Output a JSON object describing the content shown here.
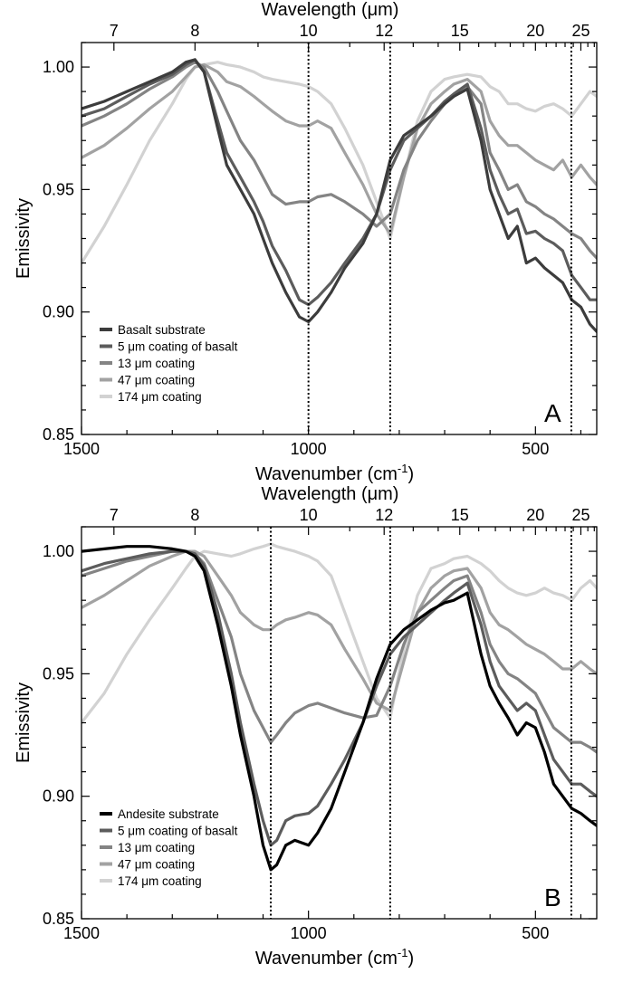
{
  "chart_data": [
    {
      "type": "line",
      "panel_label": "A",
      "xlabel": "Wavenumber (cm",
      "xlabel_sup": "-1",
      "xlabel_close": ")",
      "ylabel": "Emissivity",
      "top_xlabel": "Wavelength (μm)",
      "xlim": [
        1500,
        365
      ],
      "ylim": [
        0.85,
        1.01
      ],
      "x_ticks": [
        1500,
        1000,
        500
      ],
      "y_ticks": [
        "0.85",
        "0.90",
        "0.95",
        "1.00"
      ],
      "top_ticks": [
        "7",
        "8",
        "10",
        "12",
        "15",
        "20",
        "25"
      ],
      "reference_lines": [
        1000,
        820,
        421
      ],
      "legend": {
        "position": "bottom-left"
      },
      "series": [
        {
          "name": "Basalt substrate",
          "color": "#3c3c3c",
          "x": [
            1500,
            1450,
            1400,
            1350,
            1300,
            1270,
            1250,
            1230,
            1200,
            1180,
            1150,
            1120,
            1100,
            1080,
            1050,
            1020,
            1000,
            980,
            950,
            920,
            880,
            850,
            820,
            790,
            760,
            730,
            700,
            680,
            650,
            620,
            600,
            580,
            560,
            540,
            520,
            500,
            480,
            460,
            440,
            420,
            400,
            380,
            365
          ],
          "y": [
            0.983,
            0.986,
            0.99,
            0.994,
            0.998,
            1.002,
            1.003,
            0.998,
            0.975,
            0.96,
            0.95,
            0.94,
            0.93,
            0.92,
            0.908,
            0.898,
            0.896,
            0.9,
            0.908,
            0.918,
            0.928,
            0.94,
            0.962,
            0.972,
            0.976,
            0.98,
            0.985,
            0.988,
            0.991,
            0.97,
            0.95,
            0.94,
            0.93,
            0.935,
            0.92,
            0.922,
            0.918,
            0.915,
            0.912,
            0.905,
            0.902,
            0.895,
            0.892
          ]
        },
        {
          "name": "5 μm coating of basalt",
          "color": "#5c5c5c",
          "x": [
            1500,
            1450,
            1400,
            1350,
            1300,
            1270,
            1250,
            1230,
            1200,
            1180,
            1150,
            1120,
            1100,
            1080,
            1050,
            1020,
            1000,
            980,
            950,
            920,
            880,
            850,
            820,
            790,
            760,
            730,
            700,
            680,
            650,
            620,
            600,
            580,
            560,
            540,
            520,
            500,
            480,
            460,
            440,
            420,
            400,
            380,
            365
          ],
          "y": [
            0.98,
            0.983,
            0.988,
            0.993,
            0.997,
            1.001,
            1.003,
            0.998,
            0.978,
            0.965,
            0.955,
            0.945,
            0.937,
            0.927,
            0.917,
            0.905,
            0.903,
            0.906,
            0.912,
            0.92,
            0.93,
            0.94,
            0.958,
            0.97,
            0.975,
            0.98,
            0.986,
            0.989,
            0.993,
            0.975,
            0.958,
            0.948,
            0.94,
            0.942,
            0.932,
            0.933,
            0.93,
            0.928,
            0.925,
            0.915,
            0.91,
            0.905,
            0.905
          ]
        },
        {
          "name": "13 μm coating",
          "color": "#848484",
          "x": [
            1500,
            1450,
            1400,
            1350,
            1300,
            1270,
            1250,
            1230,
            1200,
            1180,
            1150,
            1120,
            1100,
            1080,
            1050,
            1020,
            1000,
            980,
            950,
            920,
            880,
            850,
            820,
            790,
            760,
            730,
            700,
            680,
            650,
            620,
            600,
            580,
            560,
            540,
            520,
            500,
            480,
            460,
            440,
            420,
            400,
            380,
            365
          ],
          "y": [
            0.976,
            0.98,
            0.985,
            0.991,
            0.996,
            1.0,
            1.002,
            1.0,
            0.99,
            0.982,
            0.97,
            0.962,
            0.955,
            0.948,
            0.944,
            0.945,
            0.945,
            0.947,
            0.948,
            0.945,
            0.94,
            0.935,
            0.94,
            0.958,
            0.97,
            0.978,
            0.985,
            0.988,
            0.992,
            0.985,
            0.965,
            0.958,
            0.95,
            0.952,
            0.945,
            0.943,
            0.94,
            0.938,
            0.935,
            0.932,
            0.93,
            0.925,
            0.922
          ]
        },
        {
          "name": "47 μm coating",
          "color": "#a2a2a2",
          "x": [
            1500,
            1450,
            1400,
            1350,
            1300,
            1270,
            1250,
            1230,
            1200,
            1180,
            1150,
            1120,
            1100,
            1080,
            1050,
            1020,
            1000,
            980,
            950,
            920,
            880,
            850,
            820,
            790,
            760,
            730,
            700,
            680,
            650,
            620,
            600,
            580,
            560,
            540,
            520,
            500,
            480,
            460,
            440,
            420,
            400,
            380,
            365
          ],
          "y": [
            0.963,
            0.968,
            0.975,
            0.983,
            0.99,
            0.996,
            1.0,
            1.001,
            0.998,
            0.994,
            0.992,
            0.988,
            0.985,
            0.982,
            0.978,
            0.976,
            0.976,
            0.978,
            0.975,
            0.965,
            0.952,
            0.94,
            0.932,
            0.955,
            0.975,
            0.985,
            0.99,
            0.993,
            0.995,
            0.99,
            0.978,
            0.972,
            0.968,
            0.968,
            0.965,
            0.962,
            0.96,
            0.958,
            0.962,
            0.955,
            0.96,
            0.955,
            0.952
          ]
        },
        {
          "name": "174 μm coating",
          "color": "#d2d2d2",
          "x": [
            1500,
            1450,
            1400,
            1350,
            1300,
            1270,
            1250,
            1230,
            1200,
            1180,
            1150,
            1120,
            1100,
            1080,
            1050,
            1020,
            1000,
            980,
            950,
            920,
            880,
            850,
            820,
            790,
            760,
            730,
            700,
            680,
            650,
            620,
            600,
            580,
            560,
            540,
            520,
            500,
            480,
            460,
            440,
            420,
            400,
            380,
            365
          ],
          "y": [
            0.92,
            0.935,
            0.952,
            0.97,
            0.985,
            0.995,
            1.0,
            1.001,
            1.002,
            1.001,
            1.0,
            0.998,
            0.996,
            0.995,
            0.994,
            0.993,
            0.992,
            0.99,
            0.985,
            0.975,
            0.96,
            0.945,
            0.93,
            0.955,
            0.978,
            0.99,
            0.995,
            0.996,
            0.997,
            0.996,
            0.992,
            0.99,
            0.985,
            0.985,
            0.983,
            0.982,
            0.984,
            0.985,
            0.983,
            0.98,
            0.985,
            0.99,
            0.988
          ]
        }
      ]
    },
    {
      "type": "line",
      "panel_label": "B",
      "xlabel": "Wavenumber (cm",
      "xlabel_sup": "-1",
      "xlabel_close": ")",
      "ylabel": "Emissivity",
      "top_xlabel": "Wavelength (μm)",
      "xlim": [
        1500,
        365
      ],
      "ylim": [
        0.85,
        1.01
      ],
      "x_ticks": [
        1500,
        1000,
        500
      ],
      "y_ticks": [
        "0.85",
        "0.90",
        "0.95",
        "1.00"
      ],
      "top_ticks": [
        "7",
        "8",
        "10",
        "12",
        "15",
        "20",
        "25"
      ],
      "reference_lines": [
        1083,
        820,
        421
      ],
      "legend": {
        "position": "bottom-left"
      },
      "series": [
        {
          "name": "Andesite substrate",
          "color": "#000000",
          "x": [
            1500,
            1450,
            1400,
            1350,
            1300,
            1270,
            1250,
            1230,
            1200,
            1170,
            1150,
            1120,
            1100,
            1083,
            1070,
            1050,
            1030,
            1000,
            980,
            950,
            920,
            880,
            850,
            820,
            790,
            760,
            730,
            700,
            680,
            650,
            620,
            600,
            580,
            560,
            540,
            520,
            500,
            480,
            460,
            440,
            420,
            400,
            380,
            365
          ],
          "y": [
            1.0,
            1.001,
            1.002,
            1.002,
            1.001,
            1.0,
            0.998,
            0.992,
            0.97,
            0.945,
            0.925,
            0.9,
            0.88,
            0.87,
            0.872,
            0.88,
            0.882,
            0.88,
            0.885,
            0.895,
            0.91,
            0.93,
            0.948,
            0.962,
            0.968,
            0.972,
            0.976,
            0.979,
            0.98,
            0.983,
            0.958,
            0.945,
            0.938,
            0.932,
            0.925,
            0.93,
            0.928,
            0.918,
            0.905,
            0.9,
            0.895,
            0.893,
            0.89,
            0.888
          ]
        },
        {
          "name": "5 μm coating of basalt",
          "color": "#5c5c5c",
          "x": [
            1500,
            1450,
            1400,
            1350,
            1300,
            1270,
            1250,
            1230,
            1200,
            1170,
            1150,
            1120,
            1100,
            1083,
            1070,
            1050,
            1030,
            1000,
            980,
            950,
            920,
            880,
            850,
            820,
            790,
            760,
            730,
            700,
            680,
            650,
            620,
            600,
            580,
            560,
            540,
            520,
            500,
            480,
            460,
            440,
            420,
            400,
            380,
            365
          ],
          "y": [
            0.992,
            0.995,
            0.997,
            0.999,
            1.0,
            1.0,
            0.999,
            0.994,
            0.975,
            0.95,
            0.93,
            0.905,
            0.89,
            0.88,
            0.882,
            0.89,
            0.892,
            0.893,
            0.896,
            0.905,
            0.915,
            0.93,
            0.945,
            0.958,
            0.965,
            0.97,
            0.975,
            0.98,
            0.983,
            0.987,
            0.97,
            0.955,
            0.945,
            0.94,
            0.935,
            0.938,
            0.935,
            0.925,
            0.915,
            0.91,
            0.905,
            0.905,
            0.902,
            0.9
          ]
        },
        {
          "name": "13 μm coating",
          "color": "#848484",
          "x": [
            1500,
            1450,
            1400,
            1350,
            1300,
            1270,
            1250,
            1230,
            1200,
            1170,
            1150,
            1120,
            1100,
            1083,
            1070,
            1050,
            1030,
            1000,
            980,
            950,
            920,
            880,
            850,
            820,
            790,
            760,
            730,
            700,
            680,
            650,
            620,
            600,
            580,
            560,
            540,
            520,
            500,
            480,
            460,
            440,
            420,
            400,
            380,
            365
          ],
          "y": [
            0.99,
            0.993,
            0.996,
            0.998,
            1.0,
            1.0,
            0.999,
            0.995,
            0.98,
            0.965,
            0.95,
            0.935,
            0.928,
            0.922,
            0.925,
            0.93,
            0.934,
            0.937,
            0.938,
            0.936,
            0.934,
            0.932,
            0.933,
            0.945,
            0.962,
            0.975,
            0.98,
            0.985,
            0.988,
            0.99,
            0.975,
            0.962,
            0.955,
            0.95,
            0.948,
            0.945,
            0.942,
            0.935,
            0.928,
            0.925,
            0.922,
            0.922,
            0.92,
            0.918
          ]
        },
        {
          "name": "47 μm coating",
          "color": "#a2a2a2",
          "x": [
            1500,
            1450,
            1400,
            1350,
            1300,
            1270,
            1250,
            1230,
            1200,
            1170,
            1150,
            1120,
            1100,
            1083,
            1070,
            1050,
            1030,
            1000,
            980,
            950,
            920,
            880,
            850,
            820,
            790,
            760,
            730,
            700,
            680,
            650,
            620,
            600,
            580,
            560,
            540,
            520,
            500,
            480,
            460,
            440,
            420,
            400,
            380,
            365
          ],
          "y": [
            0.977,
            0.982,
            0.988,
            0.994,
            0.998,
            1.0,
            1.0,
            0.998,
            0.99,
            0.982,
            0.975,
            0.97,
            0.968,
            0.968,
            0.97,
            0.972,
            0.973,
            0.975,
            0.974,
            0.97,
            0.96,
            0.948,
            0.938,
            0.935,
            0.955,
            0.975,
            0.985,
            0.99,
            0.992,
            0.993,
            0.985,
            0.975,
            0.97,
            0.968,
            0.965,
            0.962,
            0.96,
            0.958,
            0.955,
            0.952,
            0.952,
            0.955,
            0.952,
            0.95
          ]
        },
        {
          "name": "174 μm coating",
          "color": "#d2d2d2",
          "x": [
            1500,
            1450,
            1400,
            1350,
            1300,
            1270,
            1250,
            1230,
            1200,
            1170,
            1150,
            1120,
            1100,
            1083,
            1070,
            1050,
            1030,
            1000,
            980,
            950,
            920,
            880,
            850,
            820,
            790,
            760,
            730,
            700,
            680,
            650,
            620,
            600,
            580,
            560,
            540,
            520,
            500,
            480,
            460,
            440,
            420,
            400,
            380,
            365
          ],
          "y": [
            0.93,
            0.942,
            0.958,
            0.972,
            0.985,
            0.993,
            0.998,
            1.0,
            0.999,
            0.998,
            0.999,
            1.001,
            1.002,
            1.003,
            1.002,
            1.001,
            1.0,
            0.998,
            0.996,
            0.99,
            0.975,
            0.955,
            0.94,
            0.932,
            0.96,
            0.982,
            0.993,
            0.995,
            0.997,
            0.998,
            0.995,
            0.992,
            0.988,
            0.985,
            0.983,
            0.982,
            0.983,
            0.985,
            0.983,
            0.982,
            0.98,
            0.985,
            0.988,
            0.985
          ]
        }
      ]
    }
  ]
}
